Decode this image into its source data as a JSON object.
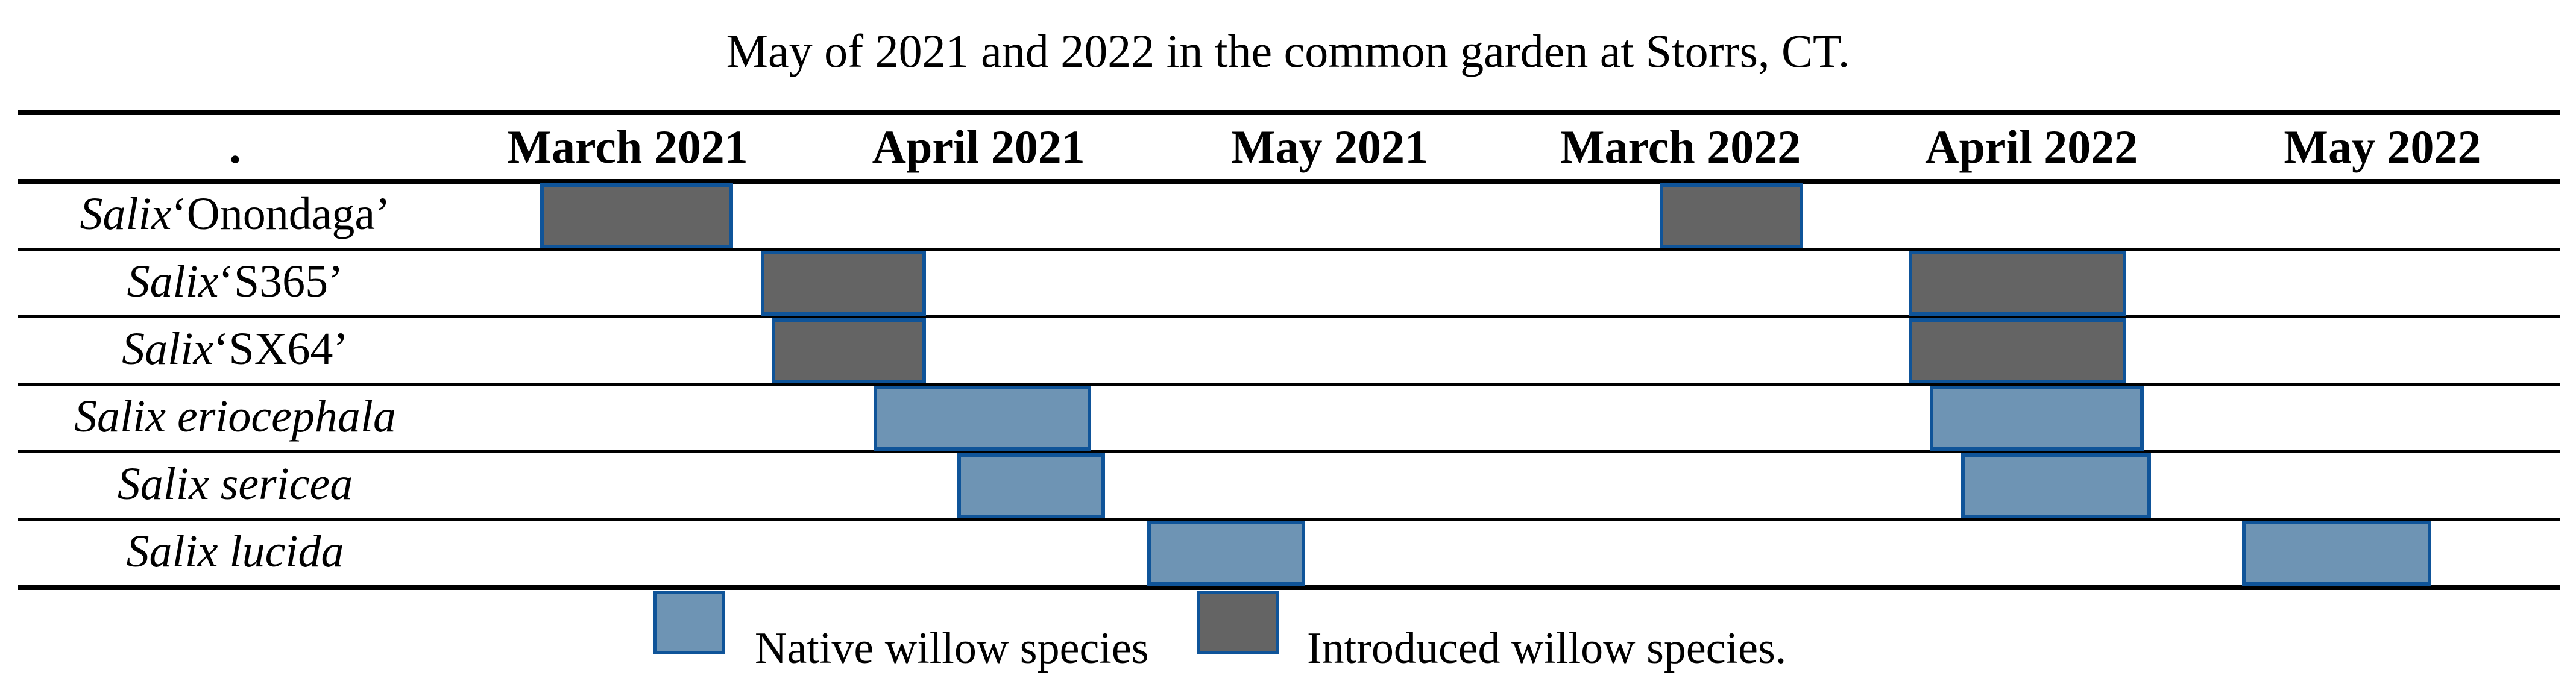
{
  "title": "May of 2021 and 2022 in the common garden at Storrs, CT.",
  "colors": {
    "native_fill": "#6E94B4",
    "introduced_fill": "#646464",
    "bar_border": "#0F5499",
    "rule_color": "#000000",
    "text_color": "#000000",
    "background": "#FFFFFF"
  },
  "chart_data": {
    "type": "gantt",
    "title": "May of 2021 and 2022 in the common garden at Storrs, CT.",
    "corner_label": ".",
    "columns": [
      "March 2021",
      "April 2021",
      "May 2021",
      "March 2022",
      "April 2022",
      "May 2022"
    ],
    "unit_note": "span values are months within each year panel: 0 = start of March, 1 = start of April, 2 = start of May, 3 = end of May",
    "rows": [
      {
        "name": "Salix ‘Onondaga’",
        "group": "introduced",
        "label_parts": [
          {
            "text": "Salix",
            "italic": true
          },
          {
            "text": " ‘Onondaga’",
            "italic": false
          }
        ],
        "spans": {
          "y2021": [
            0.25,
            0.8
          ],
          "y2022": [
            0.44,
            0.85
          ]
        }
      },
      {
        "name": "Salix ‘S365’",
        "group": "introduced",
        "label_parts": [
          {
            "text": "Salix",
            "italic": true
          },
          {
            "text": " ‘S365’",
            "italic": false
          }
        ],
        "spans": {
          "y2021": [
            0.88,
            1.35
          ],
          "y2022": [
            1.15,
            1.77
          ]
        }
      },
      {
        "name": "Salix ‘SX64’",
        "group": "introduced",
        "label_parts": [
          {
            "text": "Salix",
            "italic": true
          },
          {
            "text": " ‘SX64’",
            "italic": false
          }
        ],
        "spans": {
          "y2021": [
            0.91,
            1.35
          ],
          "y2022": [
            1.15,
            1.77
          ]
        }
      },
      {
        "name": "Salix eriocephala",
        "group": "native",
        "label_parts": [
          {
            "text": "Salix eriocephala",
            "italic": true
          }
        ],
        "spans": {
          "y2021": [
            1.2,
            1.82
          ],
          "y2022": [
            1.21,
            1.82
          ]
        }
      },
      {
        "name": "Salix sericea",
        "group": "native",
        "label_parts": [
          {
            "text": "Salix sericea",
            "italic": true
          }
        ],
        "spans": {
          "y2021": [
            1.44,
            1.86
          ],
          "y2022": [
            1.3,
            1.84
          ]
        }
      },
      {
        "name": "Salix lucida",
        "group": "native",
        "label_parts": [
          {
            "text": "Salix lucida",
            "italic": true
          }
        ],
        "spans": {
          "y2021": [
            1.98,
            2.43
          ],
          "y2022": [
            2.1,
            2.64
          ]
        }
      }
    ],
    "legend": [
      {
        "type": "native",
        "label": "Native willow species"
      },
      {
        "type": "introduced",
        "label": "Introduced willow species."
      }
    ],
    "layout_hints": {
      "grid": "horizontal row rules only",
      "legend_position": "bottom",
      "panels": [
        "2021",
        "2022"
      ]
    }
  }
}
